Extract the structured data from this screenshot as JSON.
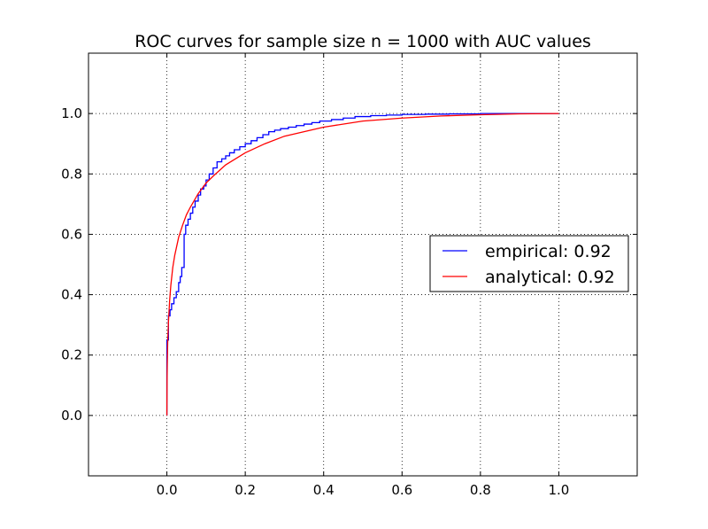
{
  "chart_data": {
    "type": "line",
    "title": "ROC curves for sample size n = 1000 with AUC values",
    "xlabel": "",
    "ylabel": "",
    "xlim": [
      -0.2,
      1.2
    ],
    "ylim": [
      -0.2,
      1.2
    ],
    "x_ticks": [
      "0.0",
      "0.2",
      "0.4",
      "0.6",
      "0.8",
      "1.0"
    ],
    "y_ticks": [
      "0.0",
      "0.2",
      "0.4",
      "0.6",
      "0.8",
      "1.0"
    ],
    "grid": true,
    "legend_position": "right",
    "series": [
      {
        "name": "empirical: 0.92",
        "color": "#0000ff",
        "style": "step",
        "x": [
          0.0,
          0.0,
          0.004,
          0.004,
          0.008,
          0.008,
          0.012,
          0.012,
          0.018,
          0.018,
          0.024,
          0.024,
          0.03,
          0.03,
          0.034,
          0.034,
          0.038,
          0.038,
          0.044,
          0.044,
          0.048,
          0.048,
          0.054,
          0.054,
          0.06,
          0.06,
          0.066,
          0.066,
          0.072,
          0.072,
          0.08,
          0.08,
          0.086,
          0.086,
          0.094,
          0.094,
          0.1,
          0.1,
          0.108,
          0.108,
          0.118,
          0.118,
          0.128,
          0.128,
          0.14,
          0.14,
          0.15,
          0.15,
          0.16,
          0.16,
          0.172,
          0.172,
          0.186,
          0.186,
          0.2,
          0.2,
          0.215,
          0.215,
          0.23,
          0.23,
          0.245,
          0.245,
          0.26,
          0.26,
          0.275,
          0.275,
          0.29,
          0.29,
          0.31,
          0.31,
          0.33,
          0.33,
          0.35,
          0.35,
          0.37,
          0.37,
          0.39,
          0.39,
          0.42,
          0.42,
          0.45,
          0.45,
          0.48,
          0.48,
          0.52,
          0.52,
          0.56,
          0.56,
          0.6,
          0.6,
          0.66,
          0.66,
          0.72,
          0.72,
          0.8,
          0.8,
          1.0
        ],
        "y": [
          0.0,
          0.25,
          0.25,
          0.33,
          0.33,
          0.35,
          0.35,
          0.37,
          0.37,
          0.39,
          0.39,
          0.41,
          0.41,
          0.44,
          0.44,
          0.46,
          0.46,
          0.49,
          0.49,
          0.6,
          0.6,
          0.63,
          0.63,
          0.65,
          0.65,
          0.67,
          0.67,
          0.69,
          0.69,
          0.71,
          0.71,
          0.73,
          0.73,
          0.75,
          0.75,
          0.76,
          0.76,
          0.78,
          0.78,
          0.8,
          0.8,
          0.82,
          0.82,
          0.84,
          0.84,
          0.85,
          0.85,
          0.86,
          0.86,
          0.87,
          0.87,
          0.88,
          0.88,
          0.89,
          0.89,
          0.9,
          0.9,
          0.91,
          0.91,
          0.92,
          0.92,
          0.93,
          0.93,
          0.94,
          0.94,
          0.945,
          0.945,
          0.95,
          0.95,
          0.955,
          0.955,
          0.96,
          0.96,
          0.965,
          0.965,
          0.97,
          0.97,
          0.975,
          0.975,
          0.98,
          0.98,
          0.985,
          0.985,
          0.99,
          0.99,
          0.993,
          0.993,
          0.995,
          0.995,
          0.997,
          0.997,
          0.998,
          0.998,
          0.999,
          0.999,
          1.0,
          1.0
        ]
      },
      {
        "name": "analytical: 0.92",
        "color": "#ff0000",
        "style": "line",
        "x": [
          0.0,
          0.0005,
          0.001,
          0.002,
          0.004,
          0.007,
          0.01,
          0.015,
          0.02,
          0.03,
          0.04,
          0.05,
          0.06,
          0.08,
          0.1,
          0.12,
          0.15,
          0.2,
          0.25,
          0.3,
          0.35,
          0.4,
          0.5,
          0.6,
          0.7,
          0.8,
          0.9,
          1.0
        ],
        "y": [
          0.0,
          0.12,
          0.17,
          0.24,
          0.31,
          0.38,
          0.43,
          0.49,
          0.53,
          0.59,
          0.63,
          0.665,
          0.69,
          0.735,
          0.77,
          0.795,
          0.83,
          0.87,
          0.9,
          0.925,
          0.94,
          0.955,
          0.975,
          0.985,
          0.992,
          0.996,
          0.999,
          1.0
        ]
      }
    ]
  }
}
